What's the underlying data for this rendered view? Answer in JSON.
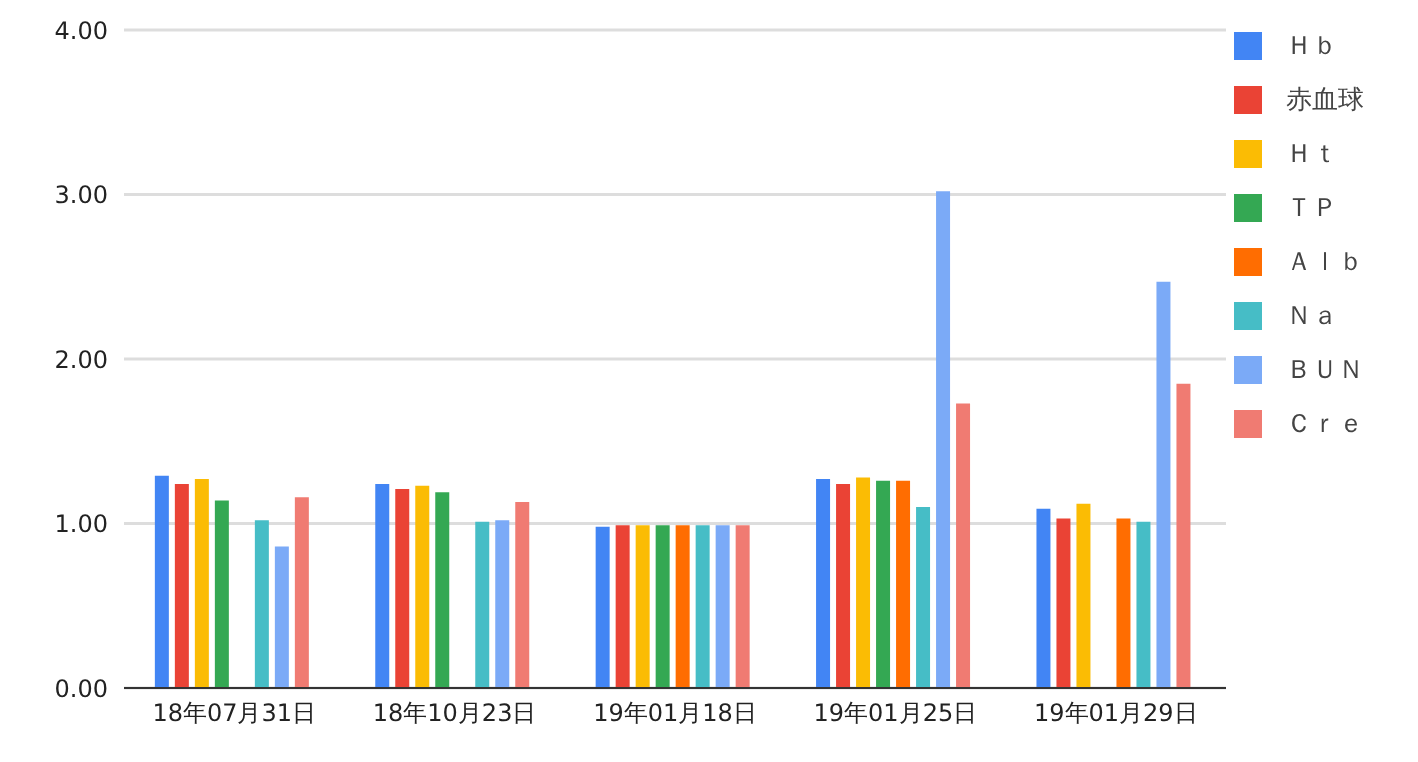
{
  "chart_data": {
    "type": "bar",
    "categories": [
      "18年07月31日",
      "18年10月23日",
      "19年01月18日",
      "19年01月25日",
      "19年01月29日"
    ],
    "series": [
      {
        "name": "Ｈｂ",
        "color": "#4285f4",
        "values": [
          1.29,
          1.24,
          0.98,
          1.27,
          1.09
        ]
      },
      {
        "name": "赤血球",
        "color": "#ea4335",
        "values": [
          1.24,
          1.21,
          0.99,
          1.24,
          1.03
        ]
      },
      {
        "name": "Ｈｔ",
        "color": "#fbbc04",
        "values": [
          1.27,
          1.23,
          0.99,
          1.28,
          1.12
        ]
      },
      {
        "name": "ＴＰ",
        "color": "#34a853",
        "values": [
          1.14,
          1.19,
          0.99,
          1.26,
          0
        ]
      },
      {
        "name": "Ａｌｂ",
        "color": "#ff6d01",
        "values": [
          null,
          null,
          0.99,
          1.26,
          1.03
        ]
      },
      {
        "name": "Ｎａ",
        "color": "#46bdc6",
        "values": [
          1.02,
          1.01,
          0.99,
          1.1,
          1.01
        ]
      },
      {
        "name": "ＢＵＮ",
        "color": "#7baaf7",
        "values": [
          0.86,
          1.02,
          0.99,
          3.02,
          2.47
        ]
      },
      {
        "name": "Ｃｒｅ",
        "color": "#f07b72",
        "values": [
          1.16,
          1.13,
          0.99,
          1.73,
          1.85
        ]
      }
    ],
    "ylim": [
      0,
      4
    ],
    "yticks": [
      {
        "value": 0,
        "label": "0.00"
      },
      {
        "value": 1,
        "label": "1.00"
      },
      {
        "value": 2,
        "label": "2.00"
      },
      {
        "value": 3,
        "label": "3.00"
      },
      {
        "value": 4,
        "label": "4.00"
      }
    ],
    "grid": "y",
    "legend": "right"
  }
}
